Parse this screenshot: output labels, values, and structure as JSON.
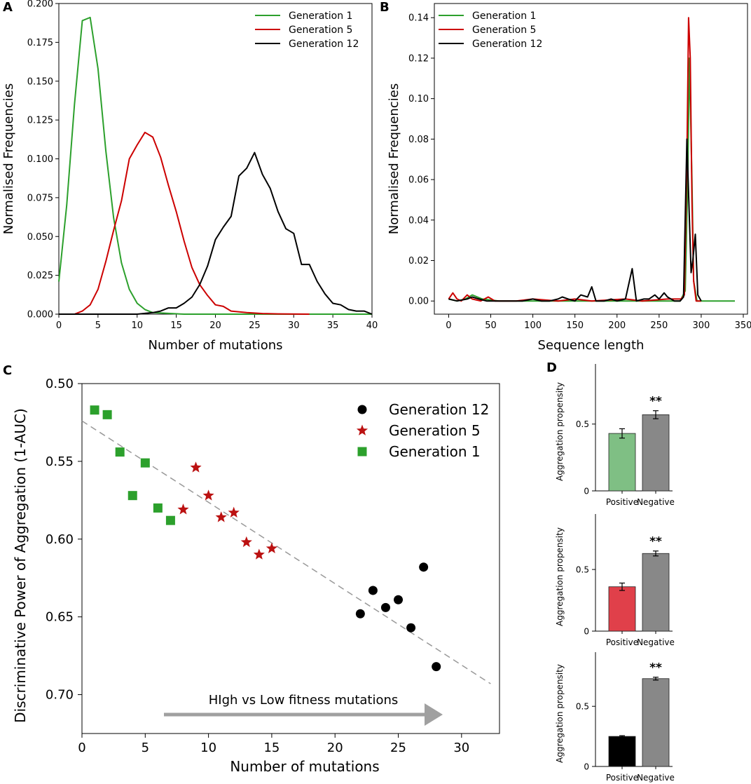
{
  "chart_data": [
    {
      "panel": "A",
      "type": "line",
      "xlabel": "Number of mutations",
      "ylabel": "Normalised Frequencies",
      "xlim": [
        0,
        40
      ],
      "ylim": [
        0,
        0.2
      ],
      "xticks": [
        "0",
        "5",
        "10",
        "15",
        "20",
        "25",
        "30",
        "35",
        "40"
      ],
      "yticks": [
        "0.000",
        "0.025",
        "0.050",
        "0.075",
        "0.100",
        "0.125",
        "0.150",
        "0.175",
        "0.200"
      ],
      "legend_position": "top-right",
      "series": [
        {
          "name": "Generation 1",
          "color": "#2ca02c",
          "points": [
            [
              0,
              0.021
            ],
            [
              1,
              0.07
            ],
            [
              2,
              0.135
            ],
            [
              3,
              0.189
            ],
            [
              4,
              0.191
            ],
            [
              5,
              0.158
            ],
            [
              6,
              0.105
            ],
            [
              7,
              0.062
            ],
            [
              8,
              0.033
            ],
            [
              9,
              0.016
            ],
            [
              10,
              0.007
            ],
            [
              11,
              0.003
            ],
            [
              12,
              0.001
            ],
            [
              14,
              0.0005
            ],
            [
              16,
              0
            ],
            [
              40,
              0
            ]
          ]
        },
        {
          "name": "Generation 5",
          "color": "#cc0000",
          "points": [
            [
              0,
              0
            ],
            [
              2,
              0
            ],
            [
              3,
              0.002
            ],
            [
              4,
              0.006
            ],
            [
              5,
              0.016
            ],
            [
              6,
              0.034
            ],
            [
              7,
              0.054
            ],
            [
              8,
              0.073
            ],
            [
              9,
              0.1
            ],
            [
              10,
              0.109
            ],
            [
              11,
              0.117
            ],
            [
              12,
              0.114
            ],
            [
              13,
              0.101
            ],
            [
              14,
              0.083
            ],
            [
              15,
              0.066
            ],
            [
              16,
              0.047
            ],
            [
              17,
              0.03
            ],
            [
              18,
              0.019
            ],
            [
              19,
              0.012
            ],
            [
              20,
              0.006
            ],
            [
              21,
              0.005
            ],
            [
              22,
              0.002
            ],
            [
              24,
              0.001
            ],
            [
              26,
              0.0004
            ],
            [
              28,
              0.0002
            ],
            [
              32,
              0
            ]
          ]
        },
        {
          "name": "Generation 12",
          "color": "#000000",
          "points": [
            [
              0,
              0
            ],
            [
              10,
              0
            ],
            [
              12,
              0.001
            ],
            [
              13,
              0.002
            ],
            [
              14,
              0.004
            ],
            [
              15,
              0.004
            ],
            [
              16,
              0.007
            ],
            [
              17,
              0.011
            ],
            [
              18,
              0.019
            ],
            [
              19,
              0.031
            ],
            [
              20,
              0.048
            ],
            [
              21,
              0.056
            ],
            [
              22,
              0.063
            ],
            [
              23,
              0.089
            ],
            [
              24,
              0.094
            ],
            [
              25,
              0.104
            ],
            [
              26,
              0.09
            ],
            [
              27,
              0.081
            ],
            [
              28,
              0.066
            ],
            [
              29,
              0.055
            ],
            [
              30,
              0.052
            ],
            [
              31,
              0.032
            ],
            [
              32,
              0.032
            ],
            [
              33,
              0.021
            ],
            [
              34,
              0.013
            ],
            [
              35,
              0.007
            ],
            [
              36,
              0.006
            ],
            [
              37,
              0.003
            ],
            [
              38,
              0.002
            ],
            [
              39,
              0.002
            ],
            [
              40,
              0
            ]
          ]
        }
      ]
    },
    {
      "panel": "B",
      "type": "line",
      "xlabel": "Sequence length",
      "ylabel": "Normalised Frequencies",
      "xlim": [
        -17,
        355
      ],
      "ylim": [
        -0.0065,
        0.147
      ],
      "xticks": [
        "0",
        "50",
        "100",
        "150",
        "200",
        "250",
        "300",
        "350"
      ],
      "yticks": [
        "0.00",
        "0.02",
        "0.04",
        "0.06",
        "0.08",
        "0.10",
        "0.12",
        "0.14"
      ],
      "legend_position": "top-left",
      "series": [
        {
          "name": "Generation 1",
          "color": "#2ca02c",
          "points": [
            [
              0,
              0.001
            ],
            [
              10,
              0.0
            ],
            [
              20,
              0.001
            ],
            [
              28,
              0.003
            ],
            [
              40,
              0.001
            ],
            [
              60,
              0.0
            ],
            [
              120,
              0.0
            ],
            [
              200,
              0.0
            ],
            [
              250,
              0.0
            ],
            [
              275,
              0.0
            ],
            [
              281,
              0.005
            ],
            [
              284,
              0.06
            ],
            [
              286,
              0.12
            ],
            [
              289,
              0.06
            ],
            [
              291,
              0.01
            ],
            [
              295,
              0.0
            ],
            [
              340,
              0.0
            ]
          ]
        },
        {
          "name": "Generation 5",
          "color": "#cc0000",
          "points": [
            [
              0,
              0.001
            ],
            [
              5,
              0.004
            ],
            [
              10,
              0.001
            ],
            [
              15,
              0.0
            ],
            [
              22,
              0.003
            ],
            [
              28,
              0.001
            ],
            [
              38,
              0.0
            ],
            [
              47,
              0.002
            ],
            [
              55,
              0.0
            ],
            [
              80,
              0.0
            ],
            [
              100,
              0.001
            ],
            [
              130,
              0.0
            ],
            [
              150,
              0.001
            ],
            [
              170,
              0.0
            ],
            [
              210,
              0.001
            ],
            [
              230,
              0.0
            ],
            [
              260,
              0.001
            ],
            [
              276,
              0.001
            ],
            [
              280,
              0.003
            ],
            [
              283,
              0.07
            ],
            [
              285,
              0.14
            ],
            [
              287,
              0.12
            ],
            [
              289,
              0.05
            ],
            [
              291,
              0.01
            ],
            [
              294,
              0.0
            ],
            [
              300,
              0.0
            ]
          ]
        },
        {
          "name": "Generation 12",
          "color": "#000000",
          "points": [
            [
              0,
              0.001
            ],
            [
              10,
              0.0
            ],
            [
              22,
              0.001
            ],
            [
              28,
              0.002
            ],
            [
              36,
              0.001
            ],
            [
              45,
              0.0
            ],
            [
              60,
              0.0
            ],
            [
              75,
              0.0
            ],
            [
              88,
              0.0
            ],
            [
              100,
              0.001
            ],
            [
              110,
              0.0
            ],
            [
              120,
              0.0
            ],
            [
              130,
              0.001
            ],
            [
              135,
              0.002
            ],
            [
              142,
              0.001
            ],
            [
              150,
              0.0
            ],
            [
              157,
              0.003
            ],
            [
              165,
              0.002
            ],
            [
              170,
              0.007
            ],
            [
              175,
              0.0
            ],
            [
              185,
              0.0
            ],
            [
              193,
              0.001
            ],
            [
              200,
              0.0
            ],
            [
              210,
              0.001
            ],
            [
              218,
              0.016
            ],
            [
              223,
              0.0
            ],
            [
              232,
              0.001
            ],
            [
              238,
              0.001
            ],
            [
              245,
              0.003
            ],
            [
              250,
              0.001
            ],
            [
              256,
              0.004
            ],
            [
              260,
              0.002
            ],
            [
              268,
              0.0
            ],
            [
              275,
              0.0
            ],
            [
              279,
              0.002
            ],
            [
              283,
              0.08
            ],
            [
              286,
              0.04
            ],
            [
              288,
              0.014
            ],
            [
              290,
              0.02
            ],
            [
              293,
              0.033
            ],
            [
              296,
              0.003
            ],
            [
              300,
              0.0
            ]
          ]
        }
      ]
    },
    {
      "panel": "C",
      "type": "scatter",
      "xlabel": "Number of mutations",
      "ylabel": "Discriminative Power of Aggregation (1-AUC)",
      "xlim": [
        0,
        33
      ],
      "ylim": [
        0.5,
        0.725
      ],
      "y_inverted": true,
      "xticks": [
        "0",
        "5",
        "10",
        "15",
        "20",
        "25",
        "30"
      ],
      "yticks": [
        "0.50",
        "0.55",
        "0.60",
        "0.65",
        "0.70"
      ],
      "legend_position": "top-right",
      "annotation": "HIgh vs Low fitness mutations",
      "trendline": [
        [
          0,
          0.524
        ],
        [
          32.3,
          0.693
        ]
      ],
      "series": [
        {
          "name": "Generation 12",
          "color": "#000000",
          "marker": "circle",
          "points": [
            [
              22,
              0.648
            ],
            [
              23,
              0.633
            ],
            [
              24,
              0.644
            ],
            [
              25,
              0.639
            ],
            [
              26,
              0.657
            ],
            [
              27,
              0.618
            ],
            [
              28,
              0.682
            ]
          ]
        },
        {
          "name": "Generation 5",
          "color": "#bb1111",
          "marker": "star",
          "points": [
            [
              8,
              0.581
            ],
            [
              9,
              0.554
            ],
            [
              10,
              0.572
            ],
            [
              11,
              0.586
            ],
            [
              12,
              0.583
            ],
            [
              13,
              0.602
            ],
            [
              14,
              0.61
            ],
            [
              15,
              0.606
            ]
          ]
        },
        {
          "name": "Generation 1",
          "color": "#2ca02c",
          "marker": "square",
          "points": [
            [
              1,
              0.517
            ],
            [
              2,
              0.52
            ],
            [
              3,
              0.544
            ],
            [
              4,
              0.572
            ],
            [
              5,
              0.551
            ],
            [
              6,
              0.58
            ],
            [
              7,
              0.588
            ]
          ]
        }
      ]
    },
    {
      "panel": "D",
      "type": "bar",
      "ylabel": "Aggregation propensity",
      "subplots": [
        {
          "categories": [
            "Positive",
            "Negative"
          ],
          "values": [
            0.43,
            0.57
          ],
          "errors": [
            0.035,
            0.03
          ],
          "colors": [
            "#7fbf84",
            "#888888"
          ],
          "significance": "**",
          "ylim": [
            0,
            0.95
          ],
          "yticks": [
            "0",
            "0.5"
          ]
        },
        {
          "categories": [
            "Positive",
            "Negative"
          ],
          "values": [
            0.36,
            0.63
          ],
          "errors": [
            0.03,
            0.02
          ],
          "colors": [
            "#e0404a",
            "#888888"
          ],
          "significance": "**",
          "ylim": [
            0,
            0.95
          ],
          "yticks": [
            "0",
            "0.5"
          ]
        },
        {
          "categories": [
            "Positive",
            "Negative"
          ],
          "values": [
            0.25,
            0.73
          ],
          "errors": [
            0.006,
            0.012
          ],
          "colors": [
            "#000000",
            "#888888"
          ],
          "significance": "**",
          "ylim": [
            0,
            0.95
          ],
          "yticks": [
            "0",
            "0.5"
          ]
        }
      ]
    }
  ]
}
